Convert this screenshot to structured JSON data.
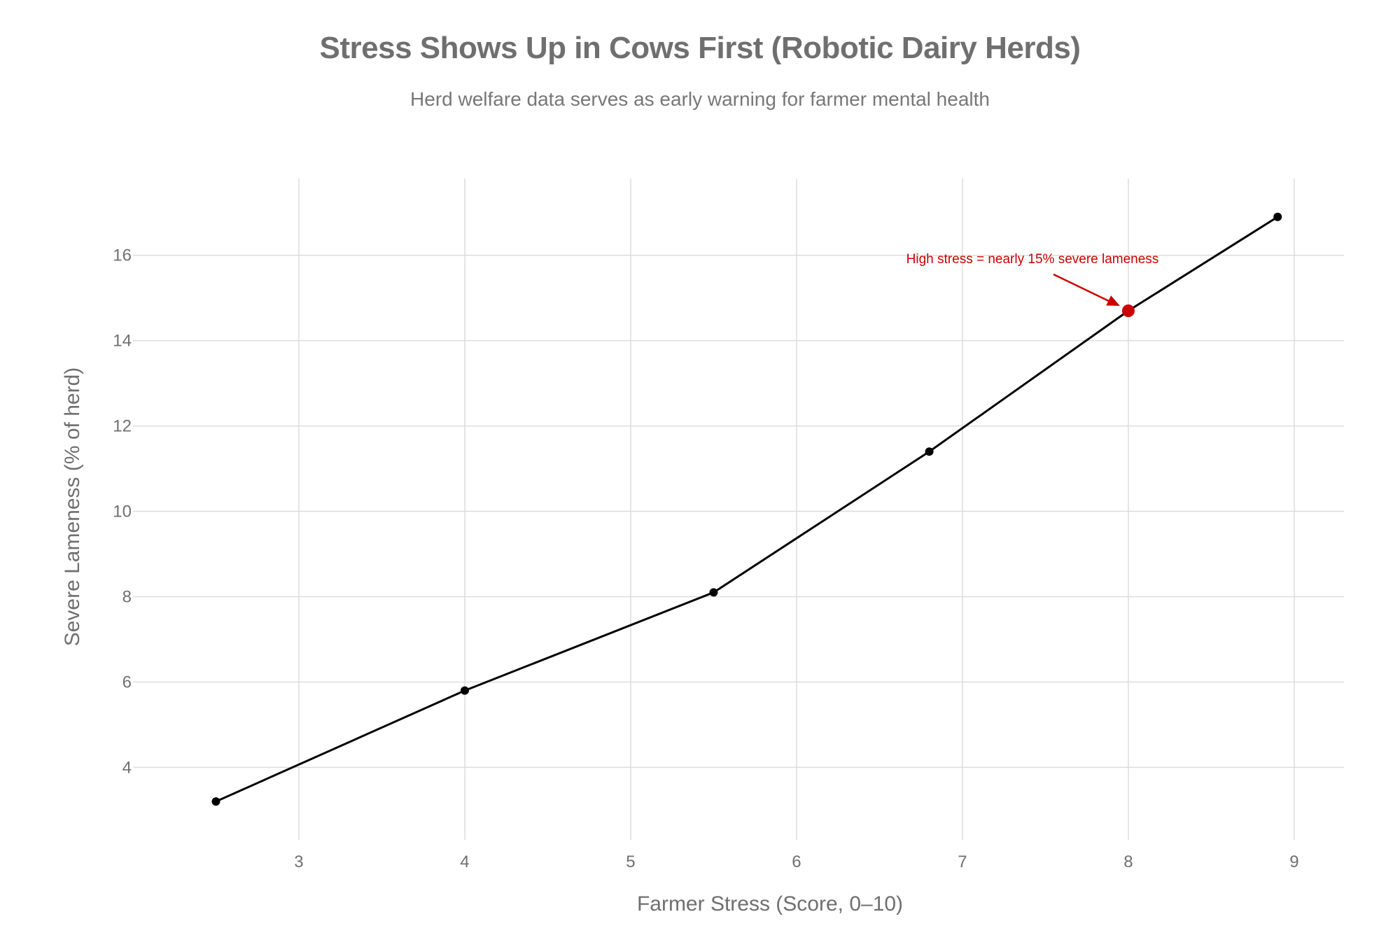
{
  "chart_data": {
    "type": "line",
    "title": "Stress Shows Up in Cows First (Robotic Dairy Herds)",
    "subtitle": "Herd welfare data serves as early warning for farmer mental health",
    "xlabel": "Farmer Stress (Score, 0–10)",
    "ylabel": "Severe Lameness (% of herd)",
    "xlim": [
      2.0,
      9.3
    ],
    "ylim": [
      2.3,
      17.8
    ],
    "x_ticks": [
      3,
      4,
      5,
      6,
      7,
      8,
      9
    ],
    "y_ticks": [
      4,
      6,
      8,
      10,
      12,
      14,
      16
    ],
    "grid": true,
    "legend": "none",
    "series": [
      {
        "x": [
          2.5,
          4.0,
          5.5,
          6.8,
          8.0,
          8.9
        ],
        "y": [
          3.2,
          5.8,
          8.1,
          11.4,
          14.7,
          16.9
        ]
      }
    ],
    "annotation": {
      "text": "High stress = nearly 15% severe lameness",
      "x": 8.0,
      "y": 14.7
    },
    "colors": {
      "line": "#000000",
      "highlight": "#cc0000",
      "grid": "#dddddd",
      "text": "#6f6f6f"
    }
  }
}
